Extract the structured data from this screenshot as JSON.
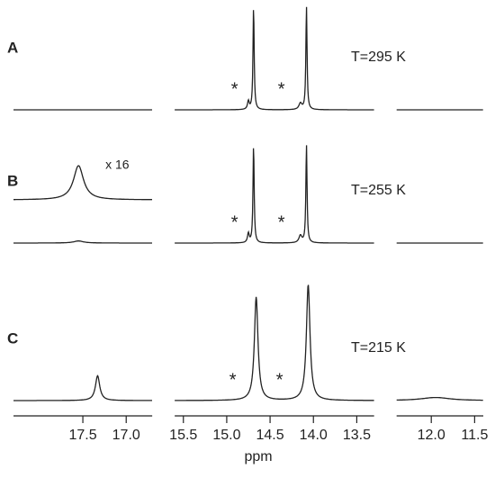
{
  "chart_data": {
    "type": "spectrum",
    "x_label": "ppm",
    "axis_segments": [
      {
        "xlim": [
          18.3,
          16.7
        ],
        "xticks": [
          17.5,
          {
            "value": 17,
            "label": "17.0"
          }
        ]
      },
      {
        "xlim": [
          15.6,
          13.3
        ],
        "xticks": [
          15.5,
          {
            "value": 15,
            "label": "15.0"
          },
          14.5,
          {
            "value": 14,
            "label": "14.0"
          },
          13.5
        ]
      },
      {
        "xlim": [
          12.4,
          11.4
        ],
        "xticks": [
          {
            "value": 12,
            "label": "12.0"
          },
          11.5
        ]
      }
    ],
    "panels": [
      {
        "label": "A",
        "temperature": "T=295 K",
        "segments": [
          [
            {
              "peaks": []
            }
          ],
          [
            {
              "peaks": [
                {
                  "x": 14.69,
                  "height": 100,
                  "width": 0.008
                },
                {
                  "x": 14.75,
                  "height": 8,
                  "width": 0.012
                },
                {
                  "x": 14.08,
                  "height": 100,
                  "width": 0.008
                },
                {
                  "x": 14.15,
                  "height": 6,
                  "width": 0.02
                }
              ]
            }
          ],
          [
            {
              "peaks": []
            }
          ]
        ],
        "annotations": [
          {
            "text": "*",
            "x": 14.91
          },
          {
            "text": "*",
            "x": 14.37
          }
        ]
      },
      {
        "label": "B",
        "temperature": "T=255 K",
        "segments": [
          [
            {
              "scale_label": "x 16",
              "peaks": [
                {
                  "x": 17.55,
                  "height": 33,
                  "width": 0.07
                }
              ]
            },
            {
              "peaks": [
                {
                  "x": 17.55,
                  "height": 2,
                  "width": 0.07
                }
              ]
            }
          ],
          [
            {
              "peaks": [
                {
                  "x": 14.69,
                  "height": 95,
                  "width": 0.008
                },
                {
                  "x": 14.75,
                  "height": 9,
                  "width": 0.012
                },
                {
                  "x": 14.08,
                  "height": 95,
                  "width": 0.008
                },
                {
                  "x": 14.15,
                  "height": 7,
                  "width": 0.02
                }
              ]
            }
          ],
          [
            {
              "peaks": []
            }
          ]
        ],
        "annotations": [
          {
            "text": "*",
            "x": 14.91
          },
          {
            "text": "*",
            "x": 14.37
          }
        ]
      },
      {
        "label": "C",
        "temperature": "T=215 K",
        "segments": [
          [
            {
              "peaks": [
                {
                  "x": 17.33,
                  "height": 24,
                  "width": 0.03
                }
              ]
            }
          ],
          [
            {
              "peaks": [
                {
                  "x": 14.66,
                  "height": 100,
                  "width": 0.025
                },
                {
                  "x": 14.06,
                  "height": 112,
                  "width": 0.025
                }
              ]
            }
          ],
          [
            {
              "peaks": [
                {
                  "x": 11.95,
                  "height": 3,
                  "width": 0.2
                }
              ]
            }
          ]
        ],
        "annotations": [
          {
            "text": "*",
            "x": 14.93
          },
          {
            "text": "*",
            "x": 14.39
          }
        ]
      }
    ]
  }
}
